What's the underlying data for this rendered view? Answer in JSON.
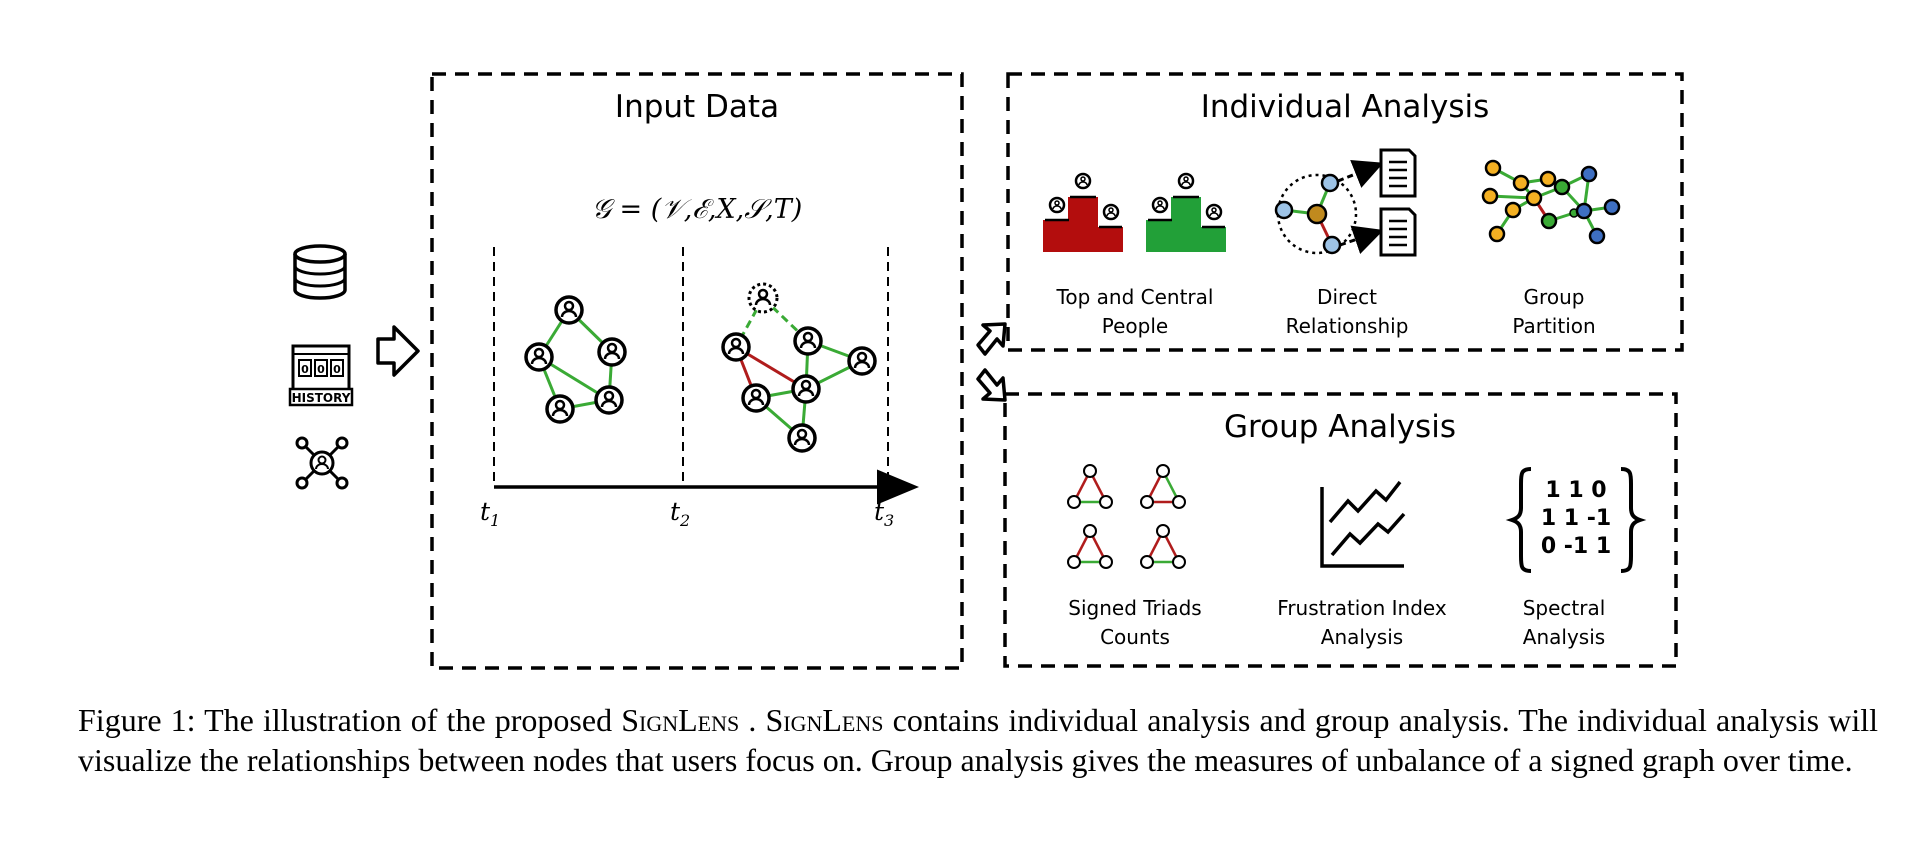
{
  "input_panel": {
    "title": "Input Data",
    "formula": "𝒢 = (𝒱,ℰ,𝑋,𝒮,𝑇)",
    "time_labels": [
      "t",
      "t",
      "t"
    ],
    "time_subscripts": [
      "1",
      "2",
      "3"
    ]
  },
  "source_icons": {
    "database_icon": "database-icon",
    "history_icon_text": "HISTORY",
    "history_digits": [
      "0",
      "0",
      "0"
    ],
    "network_icon": "user-network-icon"
  },
  "individual_panel": {
    "title": "Individual Analysis",
    "items": [
      {
        "line1": "Top and Central",
        "line2": "People"
      },
      {
        "line1": "Direct",
        "line2": "Relationship"
      },
      {
        "line1": "Group",
        "line2": "Partition"
      }
    ]
  },
  "group_panel": {
    "title": "Group Analysis",
    "items": [
      {
        "line1": "Signed Triads",
        "line2": "Counts"
      },
      {
        "line1": "Frustration Index",
        "line2": "Analysis"
      },
      {
        "line1": "Spectral",
        "line2": "Analysis"
      }
    ],
    "matrix_rows": [
      "1 1 0",
      "1 1 -1",
      "0 -1 1"
    ]
  },
  "caption": {
    "prefix": "Figure 1: The illustration of the proposed ",
    "name1": "SignLens",
    "mid": " . ",
    "name2": "SignLens",
    "rest": " contains individual analysis and group analysis. The individual analysis will visualize the relationships between nodes that users focus on. Group analysis gives the measures of unbalance of a signed graph over time."
  },
  "colors": {
    "positive_edge": "#3aaa35",
    "negative_edge": "#b01c1c",
    "podium_red": "#b30d0d",
    "podium_green": "#22a038",
    "node_orange": "#f4b022",
    "node_blue": "#9dc3e6",
    "node_dark_blue": "#3e6fc2",
    "node_green": "#3aaa35",
    "node_brown": "#c08a1e"
  }
}
